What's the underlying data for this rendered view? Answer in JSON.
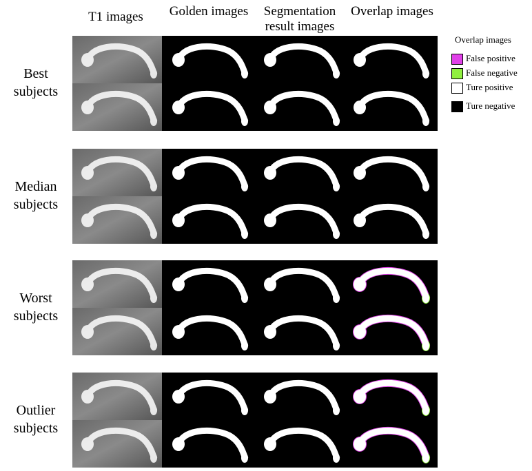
{
  "header": {
    "columns": [
      "T1 images",
      "Golden images",
      "Segmentation result images",
      "Overlap images"
    ]
  },
  "groups": [
    {
      "label": "Best subjects"
    },
    {
      "label": "Median subjects"
    },
    {
      "label": "Worst subjects"
    },
    {
      "label": "Outlier subjects"
    }
  ],
  "legend": {
    "title": "Overlap images",
    "items": [
      {
        "label": "False positive",
        "color": "#e040e8"
      },
      {
        "label": "False negative",
        "color": "#90f040"
      },
      {
        "label": "Ture positive",
        "color": "#ffffff"
      },
      {
        "label": "Ture negative",
        "color": "#000000"
      }
    ]
  }
}
